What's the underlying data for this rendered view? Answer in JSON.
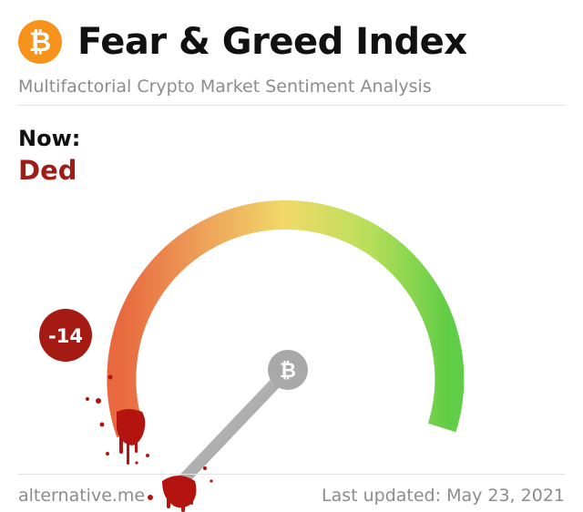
{
  "header": {
    "logo_symbol": "₿",
    "title": "Fear & Greed Index",
    "subtitle": "Multifactorial Crypto Market Sentiment Analysis"
  },
  "status": {
    "now_label": "Now:",
    "now_value": "Ded",
    "score": "-14"
  },
  "gauge": {
    "value": -14,
    "hub_symbol": "₿"
  },
  "footer": {
    "source": "alternative.me",
    "last_updated": "Last updated: May 23, 2021"
  },
  "colors": {
    "accent": "#f7931a",
    "danger": "#a51a12",
    "fear": "#e8693f",
    "neutral": "#f1d968",
    "greed": "#5fcd45"
  }
}
